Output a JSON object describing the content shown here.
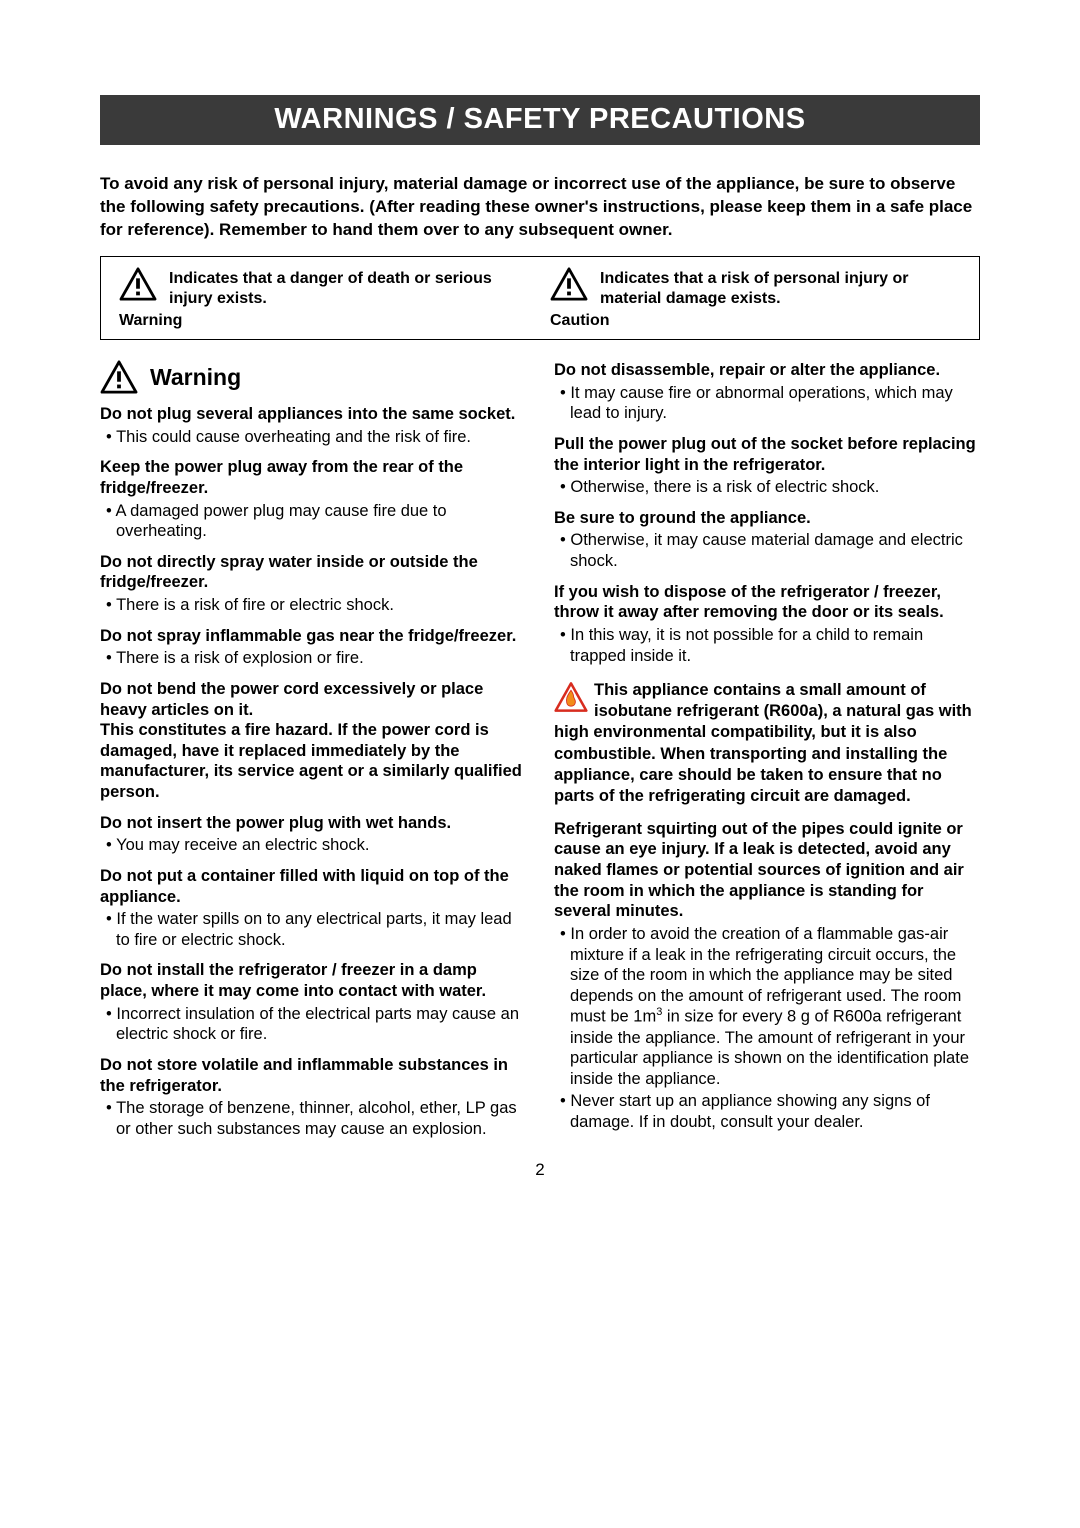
{
  "colors": {
    "title_bar_bg": "#3a3a3a",
    "title_bar_fg": "#ffffff",
    "body_bg": "#ffffff",
    "text": "#000000",
    "fire_red": "#d82c1f",
    "fire_orange": "#f28c1a"
  },
  "title": "WARNINGS / SAFETY PRECAUTIONS",
  "intro": "To avoid any risk of personal injury, material damage or incorrect use of the appliance, be sure to observe the following safety precautions. (After reading these owner's instructions, please keep them in a safe place for reference). Remember to hand them over to any subsequent owner.",
  "legend": {
    "warning": {
      "label": "Warning",
      "text": "Indicates that a danger of death or serious injury exists."
    },
    "caution": {
      "label": "Caution",
      "text": "Indicates that a risk of personal injury or material damage exists."
    }
  },
  "section_heading": "Warning",
  "left_items": [
    {
      "h": "Do not plug several appliances into the same socket.",
      "b": [
        "This could cause overheating and the risk of fire."
      ]
    },
    {
      "h": "Keep the power plug away from the rear of the fridge/freezer.",
      "b": [
        "A damaged power plug may cause fire due to overheating."
      ]
    },
    {
      "h": "Do not directly spray water inside or outside the fridge/freezer.",
      "b": [
        "There is a risk of fire or electric shock."
      ]
    },
    {
      "h": "Do not spray inflammable gas near the fridge/freezer.",
      "b": [
        "There is a risk of explosion or fire."
      ]
    },
    {
      "h": "Do not bend the power cord excessively or place heavy articles on it.\nThis constitutes a fire hazard. If the power cord is damaged, have it replaced immediately by the manufacturer, its service agent or a similarly qualified person.",
      "b": []
    },
    {
      "h": "Do not insert the power plug with wet hands.",
      "b": [
        "You may receive an electric shock."
      ]
    },
    {
      "h": "Do not put a container filled with liquid on top of the appliance.",
      "b": [
        "If the water spills on to any electrical parts, it may lead to fire or electric shock."
      ]
    },
    {
      "h": "Do not install the refrigerator / freezer in a damp place, where it may come into contact with water.",
      "b": [
        "Incorrect insulation of the electrical parts may cause an electric shock or fire."
      ]
    },
    {
      "h": "Do not store volatile and inflammable substances in the refrigerator.",
      "b": [
        "The storage of benzene, thinner, alcohol, ether, LP gas or other such substances may cause an explosion."
      ]
    }
  ],
  "right_items": [
    {
      "h": "Do not disassemble, repair or alter the appliance.",
      "b": [
        "It may cause fire or abnormal operations, which may lead to injury."
      ]
    },
    {
      "h": "Pull the power plug out of the socket before replacing the interior light in the refrigerator.",
      "b": [
        "Otherwise, there is a risk of electric shock."
      ]
    },
    {
      "h": "Be sure to ground the appliance.",
      "b": [
        "Otherwise, it may cause material damage and electric shock."
      ]
    },
    {
      "h": "If you wish to dispose of the refrigerator / freezer, throw it away after removing the door or its seals.",
      "b": [
        "In this way, it is not possible for a child to remain trapped inside it."
      ]
    }
  ],
  "refrigerant": {
    "p1": "This appliance contains a small amount of isobutane refrigerant (R600a), a natural gas with high environmental compatibility, but it is also combustible. When transporting and installing the appliance, care should be taken to ensure that no parts of the refrigerating circuit are damaged.",
    "p2": "Refrigerant squirting out of the pipes could ignite or cause an eye injury. If a leak is detected, avoid any naked flames or potential sources of ignition and air the room in which the appliance is standing for several minutes.",
    "b1_a": "In order to avoid the creation of a flammable gas-air mixture if a leak in the refrigerating circuit occurs, the size of the room in which the appliance may be sited depends on the amount of refrigerant used. The room must be 1m",
    "b1_b": " in size for every 8 g of R600a refrigerant inside the appliance. The amount of refrigerant in your particular appliance is shown on the identification plate inside the appliance.",
    "b1_sup": "3",
    "b2": "Never start up an appliance showing any signs of damage. If in doubt, consult your dealer."
  },
  "page_number": "2"
}
